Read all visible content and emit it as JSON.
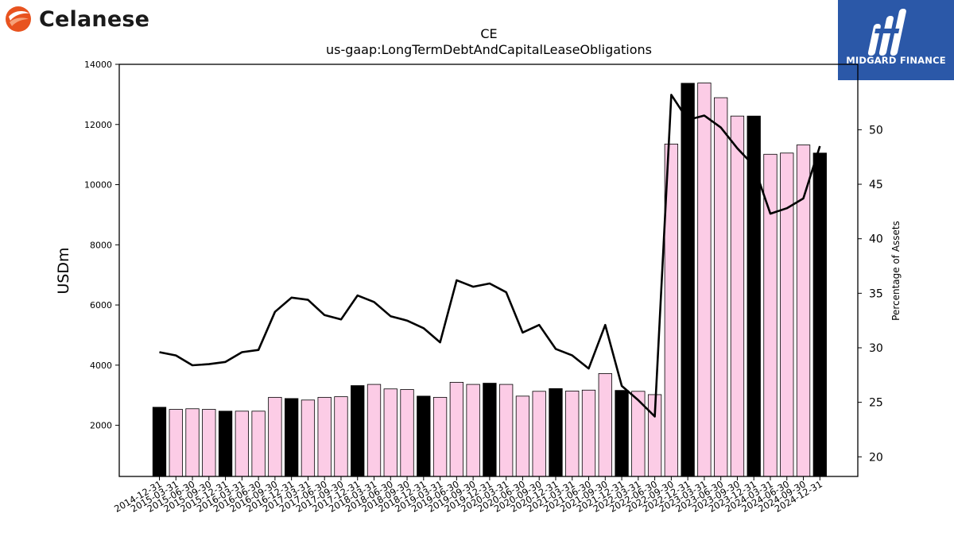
{
  "logos": {
    "left_brand": "Celanese",
    "right_brand": "MIDGARD FINANCE"
  },
  "chart_data": {
    "type": "bar",
    "title": "CE",
    "subtitle": "us-gaap:LongTermDebtAndCapitalLeaseObligations",
    "ylabel": "USDm",
    "y2label": "Percentage of Assets",
    "ylim": [
      300,
      14000
    ],
    "y2lim": [
      18.2,
      56
    ],
    "yticks": [
      2000,
      4000,
      6000,
      8000,
      10000,
      12000,
      14000
    ],
    "y2ticks": [
      20,
      25,
      30,
      35,
      40,
      45,
      50
    ],
    "grid": false,
    "legend": "none",
    "colors": {
      "annual": "#000000",
      "quarterly": "#fccce6",
      "line": "#000000"
    },
    "categories": [
      "2014-12-31",
      "2015-03-31",
      "2015-06-30",
      "2015-09-30",
      "2015-12-31",
      "2016-03-31",
      "2016-06-30",
      "2016-09-30",
      "2016-12-31",
      "2017-03-31",
      "2017-06-30",
      "2017-09-30",
      "2017-12-31",
      "2018-03-31",
      "2018-06-30",
      "2018-09-30",
      "2018-12-31",
      "2019-03-31",
      "2019-06-30",
      "2019-09-30",
      "2019-12-31",
      "2020-03-31",
      "2020-06-30",
      "2020-09-30",
      "2020-12-31",
      "2021-03-31",
      "2021-06-30",
      "2021-09-30",
      "2021-12-31",
      "2022-03-31",
      "2022-06-30",
      "2022-09-30",
      "2022-12-31",
      "2023-03-31",
      "2023-06-30",
      "2023-09-30",
      "2023-12-31",
      "2024-03-31",
      "2024-06-30",
      "2024-09-30",
      "2024-12-31"
    ],
    "series": [
      {
        "kind": "bar",
        "values": [
          2600,
          2530,
          2550,
          2530,
          2470,
          2470,
          2470,
          2930,
          2890,
          2840,
          2930,
          2950,
          3320,
          3360,
          3210,
          3190,
          2970,
          2930,
          3430,
          3360,
          3400,
          3360,
          2970,
          3130,
          3220,
          3140,
          3170,
          3720,
          3160,
          3130,
          3020,
          11350,
          13370,
          13380,
          12890,
          12280,
          12280,
          11010,
          11050,
          11320,
          11050
        ],
        "annual_flags": [
          true,
          false,
          false,
          false,
          true,
          false,
          false,
          false,
          true,
          false,
          false,
          false,
          true,
          false,
          false,
          false,
          true,
          false,
          false,
          false,
          true,
          false,
          false,
          false,
          true,
          false,
          false,
          false,
          true,
          false,
          false,
          false,
          true,
          false,
          false,
          false,
          true,
          false,
          false,
          false,
          true
        ]
      },
      {
        "kind": "line",
        "axis": "right",
        "values": [
          29.6,
          29.3,
          28.4,
          28.5,
          28.7,
          29.6,
          29.8,
          33.3,
          34.6,
          34.4,
          33.0,
          32.6,
          34.8,
          34.2,
          32.9,
          32.5,
          31.8,
          30.5,
          36.2,
          35.6,
          35.9,
          35.1,
          31.4,
          32.1,
          29.9,
          29.3,
          28.1,
          32.1,
          26.5,
          25.2,
          23.7,
          53.2,
          50.9,
          51.3,
          50.2,
          48.3,
          46.7,
          42.3,
          42.8,
          43.7,
          48.5
        ]
      }
    ]
  }
}
